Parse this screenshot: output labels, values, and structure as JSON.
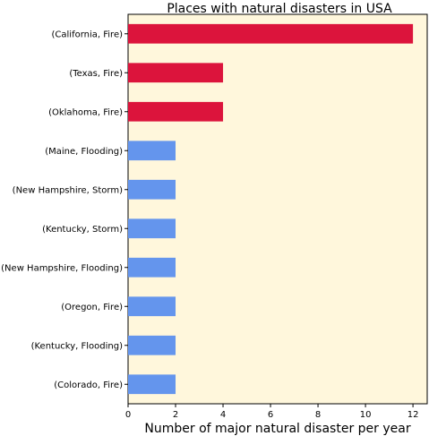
{
  "chart_data": {
    "type": "bar",
    "orientation": "horizontal",
    "title": "Places with natural disasters in USA",
    "xlabel": "Number of major natural disaster per year",
    "ylabel": "",
    "xlim": [
      0,
      12.6
    ],
    "xticks": [
      0,
      2,
      4,
      6,
      8,
      10,
      12
    ],
    "grid": false,
    "background_color": "#fff7dc",
    "highlight_color": "#dc143c",
    "default_color": "#6495ed",
    "categories": [
      "(California, Fire)",
      "(Texas, Fire)",
      "(Oklahoma, Fire)",
      "(Maine, Flooding)",
      "(New Hampshire, Storm)",
      "(Kentucky, Storm)",
      "(New Hampshire, Flooding)",
      "(Oregon, Fire)",
      "(Kentucky, Flooding)",
      "(Colorado, Fire)"
    ],
    "values": [
      12,
      4,
      4,
      2,
      2,
      2,
      2,
      2,
      2,
      2
    ],
    "highlighted": [
      true,
      true,
      true,
      false,
      false,
      false,
      false,
      false,
      false,
      false
    ]
  }
}
